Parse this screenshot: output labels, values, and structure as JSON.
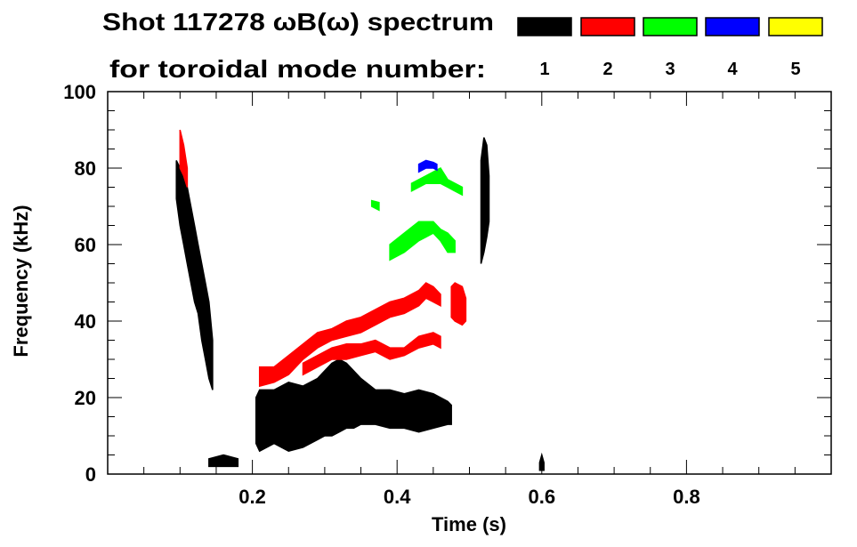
{
  "chart_data": {
    "type": "heatmap",
    "title": "Shot 117278 ωB(ω) spectrum",
    "legend_title": "for toroidal mode number:",
    "legend": [
      {
        "label": "1",
        "color": "#000000"
      },
      {
        "label": "2",
        "color": "#ff0000"
      },
      {
        "label": "3",
        "color": "#00ff00"
      },
      {
        "label": "4",
        "color": "#0000ff"
      },
      {
        "label": "5",
        "color": "#ffff00"
      }
    ],
    "xlabel": "Time (s)",
    "ylabel": "Frequency (kHz)",
    "xlim": [
      0,
      1.0
    ],
    "ylim": [
      0,
      100
    ],
    "xticks": [
      "0.2",
      "0.4",
      "0.6",
      "0.8"
    ],
    "xtick_values": [
      0.2,
      0.4,
      0.6,
      0.8
    ],
    "yticks": [
      "0",
      "20",
      "40",
      "60",
      "80",
      "100"
    ],
    "ytick_values": [
      0,
      20,
      40,
      60,
      80,
      100
    ],
    "features": [
      {
        "mode": 1,
        "name": "n1-early-chirp",
        "points": [
          [
            0.095,
            72,
            82
          ],
          [
            0.1,
            65,
            80
          ],
          [
            0.105,
            60,
            78
          ],
          [
            0.11,
            55,
            75
          ],
          [
            0.115,
            50,
            70
          ],
          [
            0.12,
            45,
            65
          ],
          [
            0.125,
            42,
            60
          ],
          [
            0.13,
            35,
            55
          ],
          [
            0.135,
            30,
            50
          ],
          [
            0.14,
            25,
            45
          ],
          [
            0.145,
            22,
            35
          ]
        ]
      },
      {
        "mode": 1,
        "name": "n1-low-frequency-burst",
        "points": [
          [
            0.205,
            8,
            20
          ],
          [
            0.21,
            6,
            22
          ],
          [
            0.23,
            8,
            22
          ],
          [
            0.25,
            6,
            24
          ],
          [
            0.27,
            7,
            23
          ],
          [
            0.29,
            9,
            25
          ],
          [
            0.3,
            10,
            27
          ],
          [
            0.31,
            10,
            29
          ],
          [
            0.32,
            11,
            30
          ],
          [
            0.33,
            12,
            29
          ],
          [
            0.34,
            12,
            27
          ],
          [
            0.35,
            13,
            25
          ],
          [
            0.37,
            13,
            22
          ],
          [
            0.39,
            12,
            22
          ],
          [
            0.41,
            12,
            21
          ],
          [
            0.43,
            11,
            22
          ],
          [
            0.45,
            12,
            21
          ],
          [
            0.47,
            13,
            19
          ],
          [
            0.475,
            13,
            18
          ]
        ]
      },
      {
        "mode": 1,
        "name": "n1-spike",
        "points": [
          [
            0.516,
            55,
            82
          ],
          [
            0.52,
            58,
            88
          ],
          [
            0.524,
            62,
            86
          ],
          [
            0.527,
            66,
            78
          ]
        ]
      },
      {
        "mode": 1,
        "name": "n1-low-bits",
        "points": [
          [
            0.14,
            2,
            4
          ],
          [
            0.16,
            2,
            5
          ],
          [
            0.18,
            2,
            4
          ]
        ]
      },
      {
        "mode": 1,
        "name": "n1-blip",
        "points": [
          [
            0.597,
            1,
            3
          ],
          [
            0.6,
            1,
            5
          ],
          [
            0.603,
            1,
            3
          ]
        ]
      },
      {
        "mode": 2,
        "name": "n2-upper-branch",
        "points": [
          [
            0.21,
            23,
            28
          ],
          [
            0.23,
            24,
            28
          ],
          [
            0.25,
            26,
            31
          ],
          [
            0.27,
            30,
            34
          ],
          [
            0.29,
            33,
            37
          ],
          [
            0.31,
            35,
            38
          ],
          [
            0.33,
            36,
            40
          ],
          [
            0.35,
            37,
            41
          ],
          [
            0.37,
            39,
            43
          ],
          [
            0.39,
            41,
            45
          ],
          [
            0.41,
            42,
            46
          ],
          [
            0.43,
            44,
            48
          ],
          [
            0.44,
            46,
            50
          ],
          [
            0.45,
            45,
            49
          ],
          [
            0.46,
            44,
            47
          ]
        ]
      },
      {
        "mode": 2,
        "name": "n2-lower-branch",
        "points": [
          [
            0.27,
            26,
            29
          ],
          [
            0.29,
            28,
            31
          ],
          [
            0.31,
            30,
            33
          ],
          [
            0.33,
            30,
            34
          ],
          [
            0.35,
            31,
            34
          ],
          [
            0.37,
            32,
            35
          ],
          [
            0.39,
            30,
            33
          ],
          [
            0.41,
            31,
            33
          ],
          [
            0.43,
            33,
            36
          ],
          [
            0.45,
            34,
            37
          ],
          [
            0.46,
            33,
            36
          ]
        ]
      },
      {
        "mode": 2,
        "name": "n2-late",
        "points": [
          [
            0.475,
            41,
            49
          ],
          [
            0.48,
            40,
            50
          ],
          [
            0.49,
            39,
            49
          ],
          [
            0.495,
            40,
            46
          ]
        ]
      },
      {
        "mode": 2,
        "name": "n2-early",
        "points": [
          [
            0.1,
            80,
            90
          ],
          [
            0.105,
            78,
            86
          ],
          [
            0.11,
            75,
            80
          ]
        ]
      },
      {
        "mode": 3,
        "name": "n3-main",
        "points": [
          [
            0.39,
            56,
            60
          ],
          [
            0.41,
            58,
            63
          ],
          [
            0.43,
            61,
            66
          ],
          [
            0.44,
            62,
            66
          ],
          [
            0.45,
            63,
            66
          ],
          [
            0.46,
            61,
            64
          ],
          [
            0.47,
            58,
            63
          ],
          [
            0.48,
            58,
            61
          ]
        ]
      },
      {
        "mode": 3,
        "name": "n3-upper",
        "points": [
          [
            0.42,
            74,
            76
          ],
          [
            0.44,
            76,
            78
          ],
          [
            0.46,
            76,
            80
          ],
          [
            0.47,
            75,
            77
          ],
          [
            0.48,
            74,
            76
          ],
          [
            0.49,
            73,
            75
          ]
        ]
      },
      {
        "mode": 3,
        "name": "n3-fragment",
        "points": [
          [
            0.365,
            70,
            71.5
          ],
          [
            0.375,
            69,
            71
          ]
        ]
      },
      {
        "mode": 4,
        "name": "n4-fragment",
        "points": [
          [
            0.43,
            79,
            81
          ],
          [
            0.44,
            80,
            82
          ],
          [
            0.45,
            80,
            81.5
          ],
          [
            0.455,
            79.5,
            81
          ]
        ]
      }
    ]
  }
}
